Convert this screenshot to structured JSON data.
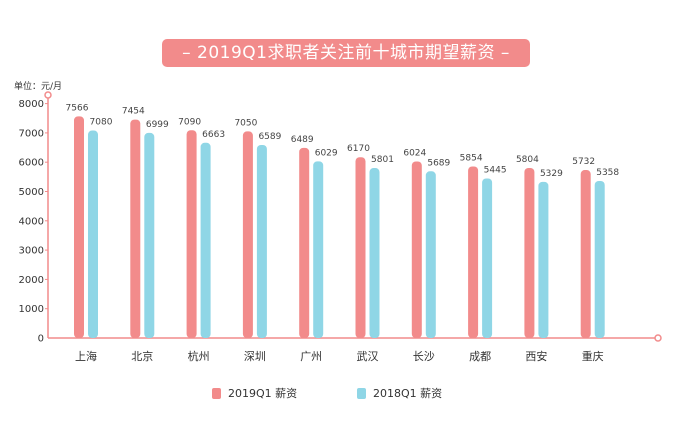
{
  "chart_data": {
    "type": "bar",
    "title": "– 2019Q1求职者关注前十城市期望薪资 –",
    "unit_label": "单位：元/月",
    "categories": [
      "上海",
      "北京",
      "杭州",
      "深圳",
      "广州",
      "武汉",
      "长沙",
      "成都",
      "西安",
      "重庆"
    ],
    "series": [
      {
        "name": "2019Q1 薪资",
        "color": "#f28b8b",
        "values": [
          7566,
          7454,
          7090,
          7050,
          6489,
          6170,
          6024,
          5854,
          5804,
          5732
        ]
      },
      {
        "name": "2018Q1 薪资",
        "color": "#8fd6e6",
        "values": [
          7080,
          6999,
          6663,
          6589,
          6029,
          5801,
          5689,
          5445,
          5329,
          5358
        ]
      }
    ],
    "ylim": [
      0,
      8000
    ],
    "yticks": [
      0,
      1000,
      2000,
      3000,
      4000,
      5000,
      6000,
      7000,
      8000
    ],
    "grid": false,
    "legend_position": "bottom"
  }
}
